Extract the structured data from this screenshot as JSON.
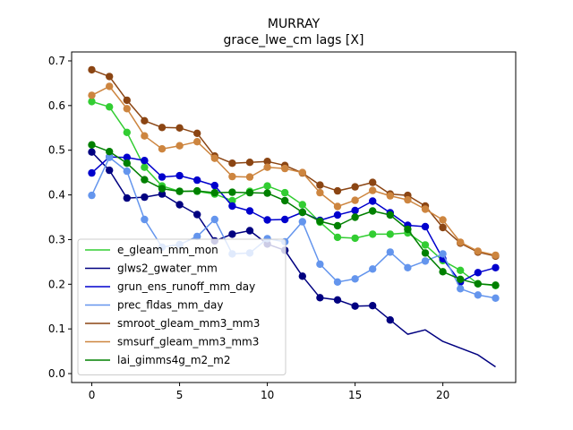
{
  "chart_data": {
    "type": "line",
    "title": "MURRAY",
    "subtitle": "grace_lwe_cm lags [X]",
    "xlabel": "",
    "ylabel": "",
    "xlim": [
      -1.15,
      24.15
    ],
    "ylim": [
      -0.02,
      0.72
    ],
    "xticks": [
      0,
      5,
      10,
      15,
      20
    ],
    "yticks": [
      0.0,
      0.1,
      0.2,
      0.3,
      0.4,
      0.5,
      0.6,
      0.7
    ],
    "xtick_labels": [
      "0",
      "5",
      "10",
      "15",
      "20"
    ],
    "ytick_labels": [
      "0.0",
      "0.1",
      "0.2",
      "0.3",
      "0.4",
      "0.5",
      "0.6",
      "0.7"
    ],
    "grid": false,
    "legend_position": "lower-left",
    "series": [
      {
        "name": "e_gleam_mm_mon",
        "color": "#32cd32",
        "x": [
          0,
          1,
          2,
          3,
          4,
          5,
          6,
          7,
          8,
          9,
          10,
          11,
          12,
          13,
          14,
          15,
          16,
          17,
          18,
          19,
          20,
          21,
          22,
          23
        ],
        "values": [
          0.609,
          0.597,
          0.54,
          0.462,
          0.42,
          0.408,
          0.408,
          0.402,
          0.387,
          0.408,
          0.42,
          0.405,
          0.378,
          0.339,
          0.305,
          0.303,
          0.312,
          0.312,
          0.315,
          0.288,
          0.253,
          0.231,
          0.201,
          0.197
        ],
        "markers": [
          true,
          true,
          true,
          true,
          true,
          true,
          true,
          true,
          true,
          true,
          true,
          true,
          true,
          true,
          true,
          true,
          true,
          true,
          true,
          true,
          true,
          true,
          true,
          true
        ]
      },
      {
        "name": "glws2_gwater_mm",
        "color": "#000080",
        "x": [
          0,
          1,
          2,
          3,
          4,
          5,
          6,
          7,
          8,
          9,
          10,
          11,
          12,
          13,
          14,
          15,
          16,
          17,
          18,
          19,
          20,
          21,
          22,
          23
        ],
        "values": [
          0.496,
          0.455,
          0.393,
          0.395,
          0.402,
          0.378,
          0.356,
          0.297,
          0.312,
          0.32,
          0.29,
          0.276,
          0.218,
          0.17,
          0.165,
          0.151,
          0.152,
          0.12,
          0.088,
          0.098,
          0.072,
          0.057,
          0.042,
          0.015
        ],
        "markers": [
          true,
          true,
          true,
          true,
          true,
          true,
          true,
          true,
          true,
          true,
          true,
          true,
          true,
          true,
          true,
          true,
          true,
          true,
          false,
          false,
          false,
          false,
          false,
          false
        ]
      },
      {
        "name": "grun_ens_runoff_mm_day",
        "color": "#0000cd",
        "x": [
          0,
          1,
          2,
          3,
          4,
          5,
          6,
          7,
          8,
          9,
          10,
          11,
          12,
          13,
          14,
          15,
          16,
          17,
          18,
          19,
          20,
          21,
          22,
          23
        ],
        "values": [
          0.449,
          0.485,
          0.484,
          0.477,
          0.44,
          0.443,
          0.433,
          0.421,
          0.375,
          0.364,
          0.344,
          0.345,
          0.361,
          0.343,
          0.355,
          0.365,
          0.386,
          0.36,
          0.332,
          0.329,
          0.257,
          0.205,
          0.226,
          0.237
        ],
        "markers": [
          true,
          true,
          true,
          true,
          true,
          true,
          true,
          true,
          true,
          true,
          true,
          true,
          true,
          true,
          true,
          true,
          true,
          true,
          true,
          true,
          true,
          true,
          true,
          true
        ]
      },
      {
        "name": "prec_fldas_mm_day",
        "color": "#6495ed",
        "x": [
          0,
          1,
          2,
          3,
          4,
          5,
          6,
          7,
          8,
          9,
          10,
          11,
          12,
          13,
          14,
          15,
          16,
          17,
          18,
          19,
          20,
          21,
          22,
          23
        ],
        "values": [
          0.399,
          0.484,
          0.453,
          0.345,
          0.283,
          0.289,
          0.307,
          0.345,
          0.268,
          0.27,
          0.302,
          0.295,
          0.34,
          0.245,
          0.205,
          0.212,
          0.234,
          0.272,
          0.237,
          0.252,
          0.268,
          0.19,
          0.176,
          0.169
        ],
        "markers": [
          true,
          true,
          true,
          true,
          true,
          true,
          true,
          true,
          true,
          true,
          true,
          true,
          true,
          true,
          true,
          true,
          true,
          true,
          true,
          true,
          true,
          true,
          true,
          true
        ]
      },
      {
        "name": "smroot_gleam_mm3_mm3",
        "color": "#8b4513",
        "x": [
          0,
          1,
          2,
          3,
          4,
          5,
          6,
          7,
          8,
          9,
          10,
          11,
          12,
          13,
          14,
          15,
          16,
          17,
          18,
          19,
          20,
          21,
          22,
          23
        ],
        "values": [
          0.68,
          0.665,
          0.612,
          0.566,
          0.551,
          0.55,
          0.538,
          0.487,
          0.471,
          0.473,
          0.475,
          0.466,
          0.449,
          0.422,
          0.409,
          0.418,
          0.428,
          0.402,
          0.399,
          0.375,
          0.327,
          0.292,
          0.272,
          0.263
        ],
        "markers": [
          true,
          true,
          true,
          true,
          true,
          true,
          true,
          true,
          true,
          true,
          true,
          true,
          true,
          true,
          true,
          true,
          true,
          true,
          true,
          true,
          true,
          true,
          true,
          true
        ]
      },
      {
        "name": "smsurf_gleam_mm3_mm3",
        "color": "#cd853f",
        "x": [
          0,
          1,
          2,
          3,
          4,
          5,
          6,
          7,
          8,
          9,
          10,
          11,
          12,
          13,
          14,
          15,
          16,
          17,
          18,
          19,
          20,
          21,
          22,
          23
        ],
        "values": [
          0.623,
          0.643,
          0.593,
          0.532,
          0.503,
          0.51,
          0.519,
          0.482,
          0.441,
          0.44,
          0.462,
          0.459,
          0.45,
          0.405,
          0.374,
          0.388,
          0.41,
          0.398,
          0.389,
          0.368,
          0.344,
          0.294,
          0.274,
          0.265
        ],
        "markers": [
          true,
          true,
          true,
          true,
          true,
          true,
          true,
          true,
          true,
          true,
          true,
          true,
          true,
          true,
          true,
          true,
          true,
          true,
          true,
          true,
          true,
          true,
          true,
          true
        ]
      },
      {
        "name": "lai_gimms4g_m2_m2",
        "color": "#008000",
        "x": [
          0,
          1,
          2,
          3,
          4,
          5,
          6,
          7,
          8,
          9,
          10,
          11,
          12,
          13,
          14,
          15,
          16,
          17,
          18,
          19,
          20,
          21,
          22,
          23
        ],
        "values": [
          0.512,
          0.497,
          0.471,
          0.434,
          0.414,
          0.408,
          0.409,
          0.405,
          0.406,
          0.405,
          0.404,
          0.387,
          0.361,
          0.341,
          0.331,
          0.35,
          0.364,
          0.355,
          0.323,
          0.27,
          0.228,
          0.211,
          0.201,
          0.198
        ],
        "markers": [
          true,
          true,
          true,
          true,
          true,
          true,
          true,
          true,
          true,
          true,
          true,
          true,
          true,
          true,
          true,
          true,
          true,
          true,
          true,
          true,
          true,
          true,
          true,
          true
        ]
      }
    ]
  }
}
